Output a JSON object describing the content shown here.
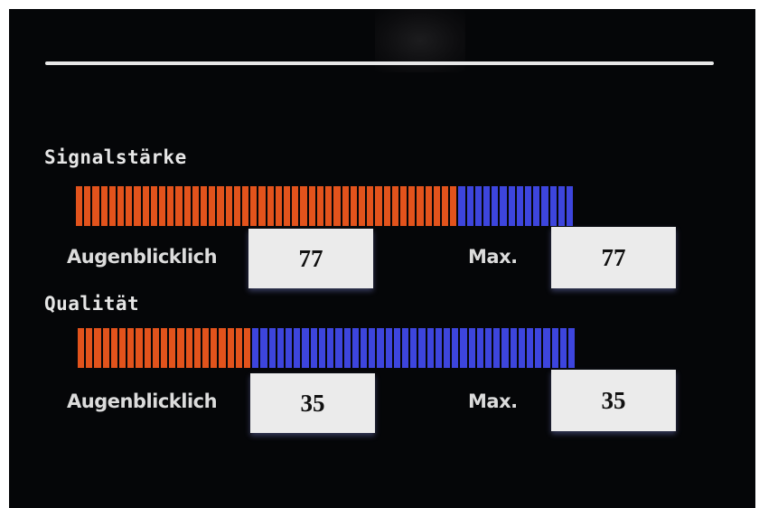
{
  "signal": {
    "label": "Signalstärke",
    "level_percent": 77,
    "current_label": "Augenblicklich",
    "current_value": "77",
    "max_label": "Max.",
    "max_value": "77"
  },
  "quality": {
    "label": "Qualität",
    "level_percent": 35,
    "current_label": "Augenblicklich",
    "current_value": "35",
    "max_label": "Max.",
    "max_value": "35"
  },
  "colors": {
    "active_segment": "#e2531c",
    "inactive_segment": "#3d45dd",
    "background": "#050608",
    "value_box": "#ebebeb"
  }
}
